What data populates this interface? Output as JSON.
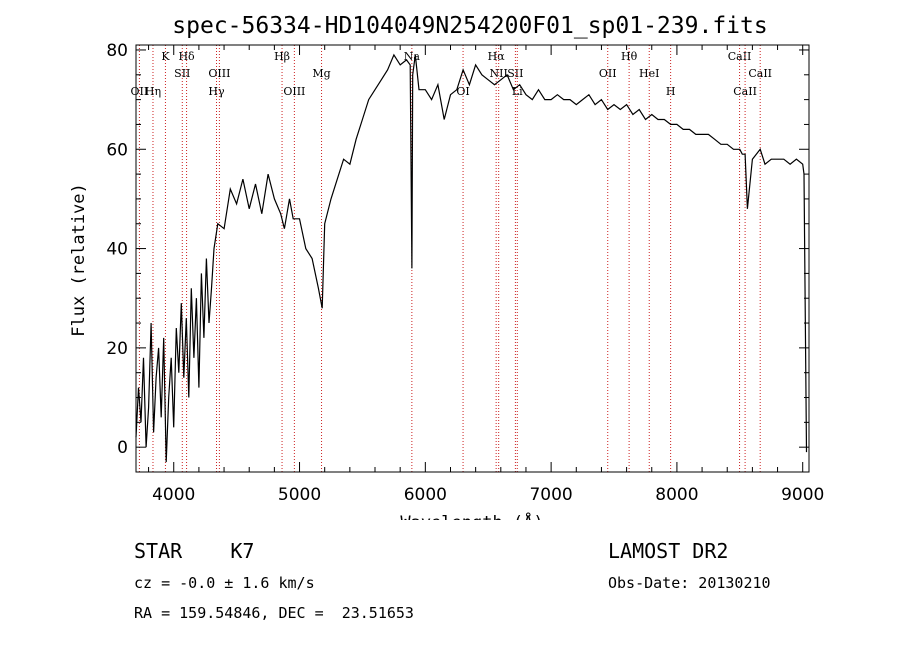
{
  "chart_data": {
    "type": "line",
    "title": "spec-56334-HD104049N254200F01_sp01-239.fits",
    "xlabel": "Wavelength (Å)",
    "ylabel": "Flux (relative)",
    "xlim": [
      3700,
      9050
    ],
    "ylim": [
      -5,
      81
    ],
    "xticks": [
      4000,
      5000,
      6000,
      7000,
      8000,
      9000
    ],
    "yticks": [
      0,
      20,
      40,
      60,
      80
    ],
    "grid": false,
    "line_color": "#000000",
    "marker_color": "#cc2222",
    "series": [
      {
        "x": [
          3700,
          3720,
          3740,
          3760,
          3780,
          3800,
          3820,
          3840,
          3860,
          3880,
          3900,
          3920,
          3940,
          3960,
          3980,
          4000,
          4020,
          4040,
          4060,
          4080,
          4100,
          4120,
          4140,
          4160,
          4180,
          4200,
          4220,
          4240,
          4260,
          4280,
          4300,
          4320,
          4350,
          4400,
          4450,
          4500,
          4550,
          4600,
          4650,
          4700,
          4750,
          4800,
          4850,
          4880,
          4920,
          4950,
          5000,
          5050,
          5100,
          5150,
          5180,
          5200,
          5250,
          5300,
          5350,
          5400,
          5450,
          5500,
          5550,
          5600,
          5650,
          5700,
          5750,
          5800,
          5850,
          5880,
          5893,
          5900,
          5920,
          5950,
          6000,
          6050,
          6100,
          6150,
          6200,
          6250,
          6300,
          6350,
          6400,
          6450,
          6500,
          6550,
          6600,
          6650,
          6700,
          6750,
          6800,
          6850,
          6900,
          6950,
          7000,
          7050,
          7100,
          7150,
          7200,
          7250,
          7300,
          7350,
          7400,
          7450,
          7500,
          7550,
          7600,
          7650,
          7700,
          7750,
          7800,
          7850,
          7900,
          7950,
          8000,
          8050,
          8100,
          8150,
          8200,
          8250,
          8300,
          8350,
          8400,
          8450,
          8500,
          8520,
          8542,
          8560,
          8600,
          8662,
          8700,
          8750,
          8800,
          8850,
          8900,
          8950,
          9000,
          9010,
          9030
        ],
        "y": [
          2,
          12,
          5,
          18,
          0,
          8,
          25,
          3,
          14,
          20,
          6,
          22,
          -3,
          10,
          18,
          4,
          24,
          15,
          29,
          14,
          26,
          10,
          32,
          18,
          30,
          12,
          35,
          22,
          38,
          25,
          32,
          40,
          45,
          44,
          52,
          49,
          54,
          48,
          53,
          47,
          55,
          50,
          47,
          44,
          50,
          46,
          46,
          40,
          38,
          32,
          28,
          45,
          50,
          54,
          58,
          57,
          62,
          66,
          70,
          72,
          74,
          76,
          79,
          77,
          78,
          77,
          36,
          75,
          79,
          72,
          72,
          70,
          73,
          66,
          71,
          72,
          76,
          73,
          77,
          75,
          74,
          73,
          74,
          75,
          72,
          73,
          71,
          70,
          72,
          70,
          70,
          71,
          70,
          70,
          69,
          70,
          71,
          69,
          70,
          68,
          69,
          68,
          69,
          67,
          68,
          66,
          67,
          66,
          66,
          65,
          65,
          64,
          64,
          63,
          63,
          63,
          62,
          61,
          61,
          60,
          60,
          59,
          59,
          48,
          58,
          60,
          57,
          58,
          58,
          58,
          57,
          58,
          57,
          55,
          -1
        ]
      }
    ],
    "lines": [
      {
        "name": "OII",
        "x": 3727,
        "row": 2
      },
      {
        "name": "Hη",
        "x": 3835,
        "row": 2
      },
      {
        "name": "K",
        "x": 3934,
        "row": 0
      },
      {
        "name": "SII",
        "x": 4068,
        "row": 1
      },
      {
        "name": "Hδ",
        "x": 4102,
        "row": 0
      },
      {
        "name": "Hγ",
        "x": 4340,
        "row": 2
      },
      {
        "name": "OIII",
        "x": 4363,
        "row": 1
      },
      {
        "name": "Hβ",
        "x": 4861,
        "row": 0
      },
      {
        "name": "OIII",
        "x": 4959,
        "row": 2
      },
      {
        "name": "Mg",
        "x": 5175,
        "row": 1
      },
      {
        "name": "Na",
        "x": 5893,
        "row": 0
      },
      {
        "name": "OI",
        "x": 6300,
        "row": 2
      },
      {
        "name": "Hα",
        "x": 6563,
        "row": 0
      },
      {
        "name": "NII",
        "x": 6583,
        "row": 1
      },
      {
        "name": "SII",
        "x": 6716,
        "row": 1
      },
      {
        "name": "Li",
        "x": 6731,
        "row": 2
      },
      {
        "name": "OII",
        "x": 7450,
        "row": 1
      },
      {
        "name": "Hθ",
        "x": 7620,
        "row": 0
      },
      {
        "name": "HeI",
        "x": 7780,
        "row": 1
      },
      {
        "name": "H",
        "x": 7950,
        "row": 2
      },
      {
        "name": "CaII",
        "x": 8498,
        "row": 0
      },
      {
        "name": "CaII",
        "x": 8542,
        "row": 2
      },
      {
        "name": "CaII",
        "x": 8662,
        "row": 1
      }
    ]
  },
  "info": {
    "object": "STAR",
    "subclass": "K7",
    "survey": "LAMOST DR2",
    "cz": "cz = -0.0 ± 1.6 km/s",
    "obs_date": "Obs-Date: 20130210",
    "radec": "RA = 159.54846, DEC =  23.51653"
  }
}
